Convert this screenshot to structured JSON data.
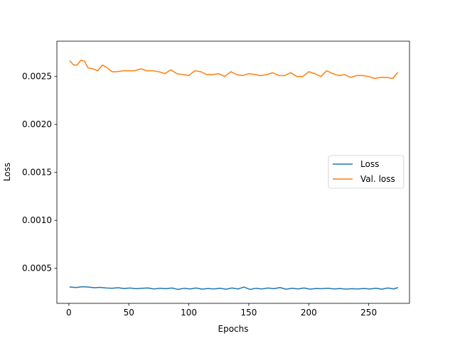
{
  "chart_data": {
    "type": "line",
    "title": "",
    "xlabel": "Epochs",
    "ylabel": "Loss",
    "xlim": [
      -10,
      284
    ],
    "ylim": [
      0.000135,
      0.002868
    ],
    "x_ticks": [
      0,
      50,
      100,
      150,
      200,
      250
    ],
    "x_tick_labels": [
      "0",
      "50",
      "100",
      "150",
      "200",
      "250"
    ],
    "y_ticks": [
      0.0005,
      0.001,
      0.0015,
      0.002,
      0.0025
    ],
    "y_tick_labels": [
      "0.0005",
      "0.0010",
      "0.0015",
      "0.0020",
      "0.0025"
    ],
    "grid": false,
    "legend_position": "center-right",
    "series": [
      {
        "name": "Loss",
        "color": "#1f77b4",
        "x": [
          1,
          6,
          11,
          16,
          21,
          26,
          31,
          36,
          41,
          46,
          51,
          56,
          61,
          66,
          71,
          76,
          81,
          86,
          91,
          96,
          101,
          106,
          111,
          116,
          121,
          126,
          131,
          136,
          141,
          146,
          151,
          156,
          161,
          166,
          171,
          176,
          181,
          186,
          191,
          196,
          201,
          206,
          211,
          216,
          221,
          226,
          231,
          236,
          241,
          246,
          251,
          256,
          261,
          266,
          271,
          274
        ],
        "values": [
          0.000305,
          0.0003,
          0.000308,
          0.000305,
          0.000298,
          0.000302,
          0.000295,
          0.000292,
          0.000298,
          0.00029,
          0.000295,
          0.000288,
          0.000292,
          0.000295,
          0.000285,
          0.000292,
          0.000288,
          0.000295,
          0.00028,
          0.000292,
          0.000285,
          0.000295,
          0.000283,
          0.00029,
          0.000285,
          0.000292,
          0.000282,
          0.000295,
          0.000285,
          0.000305,
          0.00028,
          0.000292,
          0.000285,
          0.000295,
          0.000288,
          0.0003,
          0.000282,
          0.000292,
          0.000285,
          0.000295,
          0.000283,
          0.00029,
          0.000288,
          0.000292,
          0.000285,
          0.00029,
          0.000283,
          0.000288,
          0.000285,
          0.00029,
          0.000285,
          0.000292,
          0.000283,
          0.000295,
          0.000285,
          0.000298
        ]
      },
      {
        "name": "Val. loss",
        "color": "#ff7f0e",
        "x": [
          1,
          4,
          7,
          10,
          13,
          16,
          20,
          24,
          28,
          32,
          36,
          40,
          45,
          50,
          55,
          60,
          65,
          70,
          75,
          80,
          85,
          90,
          95,
          100,
          105,
          110,
          115,
          120,
          125,
          130,
          135,
          140,
          145,
          150,
          155,
          160,
          165,
          170,
          175,
          180,
          185,
          190,
          195,
          200,
          205,
          210,
          215,
          220,
          225,
          230,
          235,
          240,
          245,
          250,
          255,
          260,
          265,
          270,
          274
        ],
        "values": [
          0.00266,
          0.00262,
          0.00262,
          0.00267,
          0.00266,
          0.00259,
          0.00258,
          0.00256,
          0.00262,
          0.00259,
          0.00255,
          0.00255,
          0.00256,
          0.00256,
          0.00256,
          0.00258,
          0.00256,
          0.00256,
          0.00255,
          0.00253,
          0.00257,
          0.00253,
          0.00252,
          0.00251,
          0.00256,
          0.00255,
          0.00252,
          0.00252,
          0.00253,
          0.0025,
          0.00255,
          0.00252,
          0.00251,
          0.00253,
          0.00252,
          0.00251,
          0.00252,
          0.00254,
          0.00251,
          0.00251,
          0.00254,
          0.0025,
          0.0025,
          0.00255,
          0.00253,
          0.0025,
          0.00256,
          0.00253,
          0.00251,
          0.00252,
          0.00249,
          0.00251,
          0.00251,
          0.0025,
          0.00248,
          0.00249,
          0.00249,
          0.00248,
          0.00254
        ]
      }
    ]
  }
}
